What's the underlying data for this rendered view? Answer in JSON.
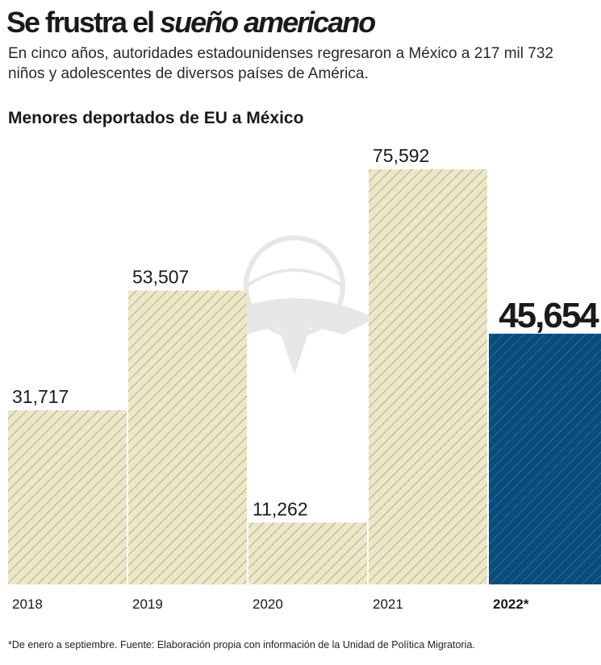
{
  "header": {
    "title_plain": "Se frustra el ",
    "title_italic": "sueño americano",
    "subtitle": "En cinco años, autoridades estadounidenses regresaron a México a 217 mil 732 niños y adolescentes de diversos países de América."
  },
  "footnote": "*De enero a septiembre. Fuente: Elaboración propia con información de la Unidad de Política Migratoria.",
  "colors": {
    "bar_fill": "#ede7c9",
    "bar_stripe": "#b9ad7c",
    "highlight_fill": "#0b4c7e",
    "highlight_stripe": "#2c6b9c",
    "text": "#1a1a1a"
  },
  "chart_data": {
    "type": "bar",
    "title": "Menores deportados de EU a México",
    "categories": [
      "2018",
      "2019",
      "2020",
      "2021",
      "2022*"
    ],
    "values": [
      31717,
      53507,
      11262,
      75592,
      45654
    ],
    "value_labels": [
      "31,717",
      "53,507",
      "11,262",
      "75,592",
      "45,654"
    ],
    "highlight_index": 4,
    "ylim": [
      0,
      75592
    ],
    "grid": false,
    "legend": "none"
  }
}
